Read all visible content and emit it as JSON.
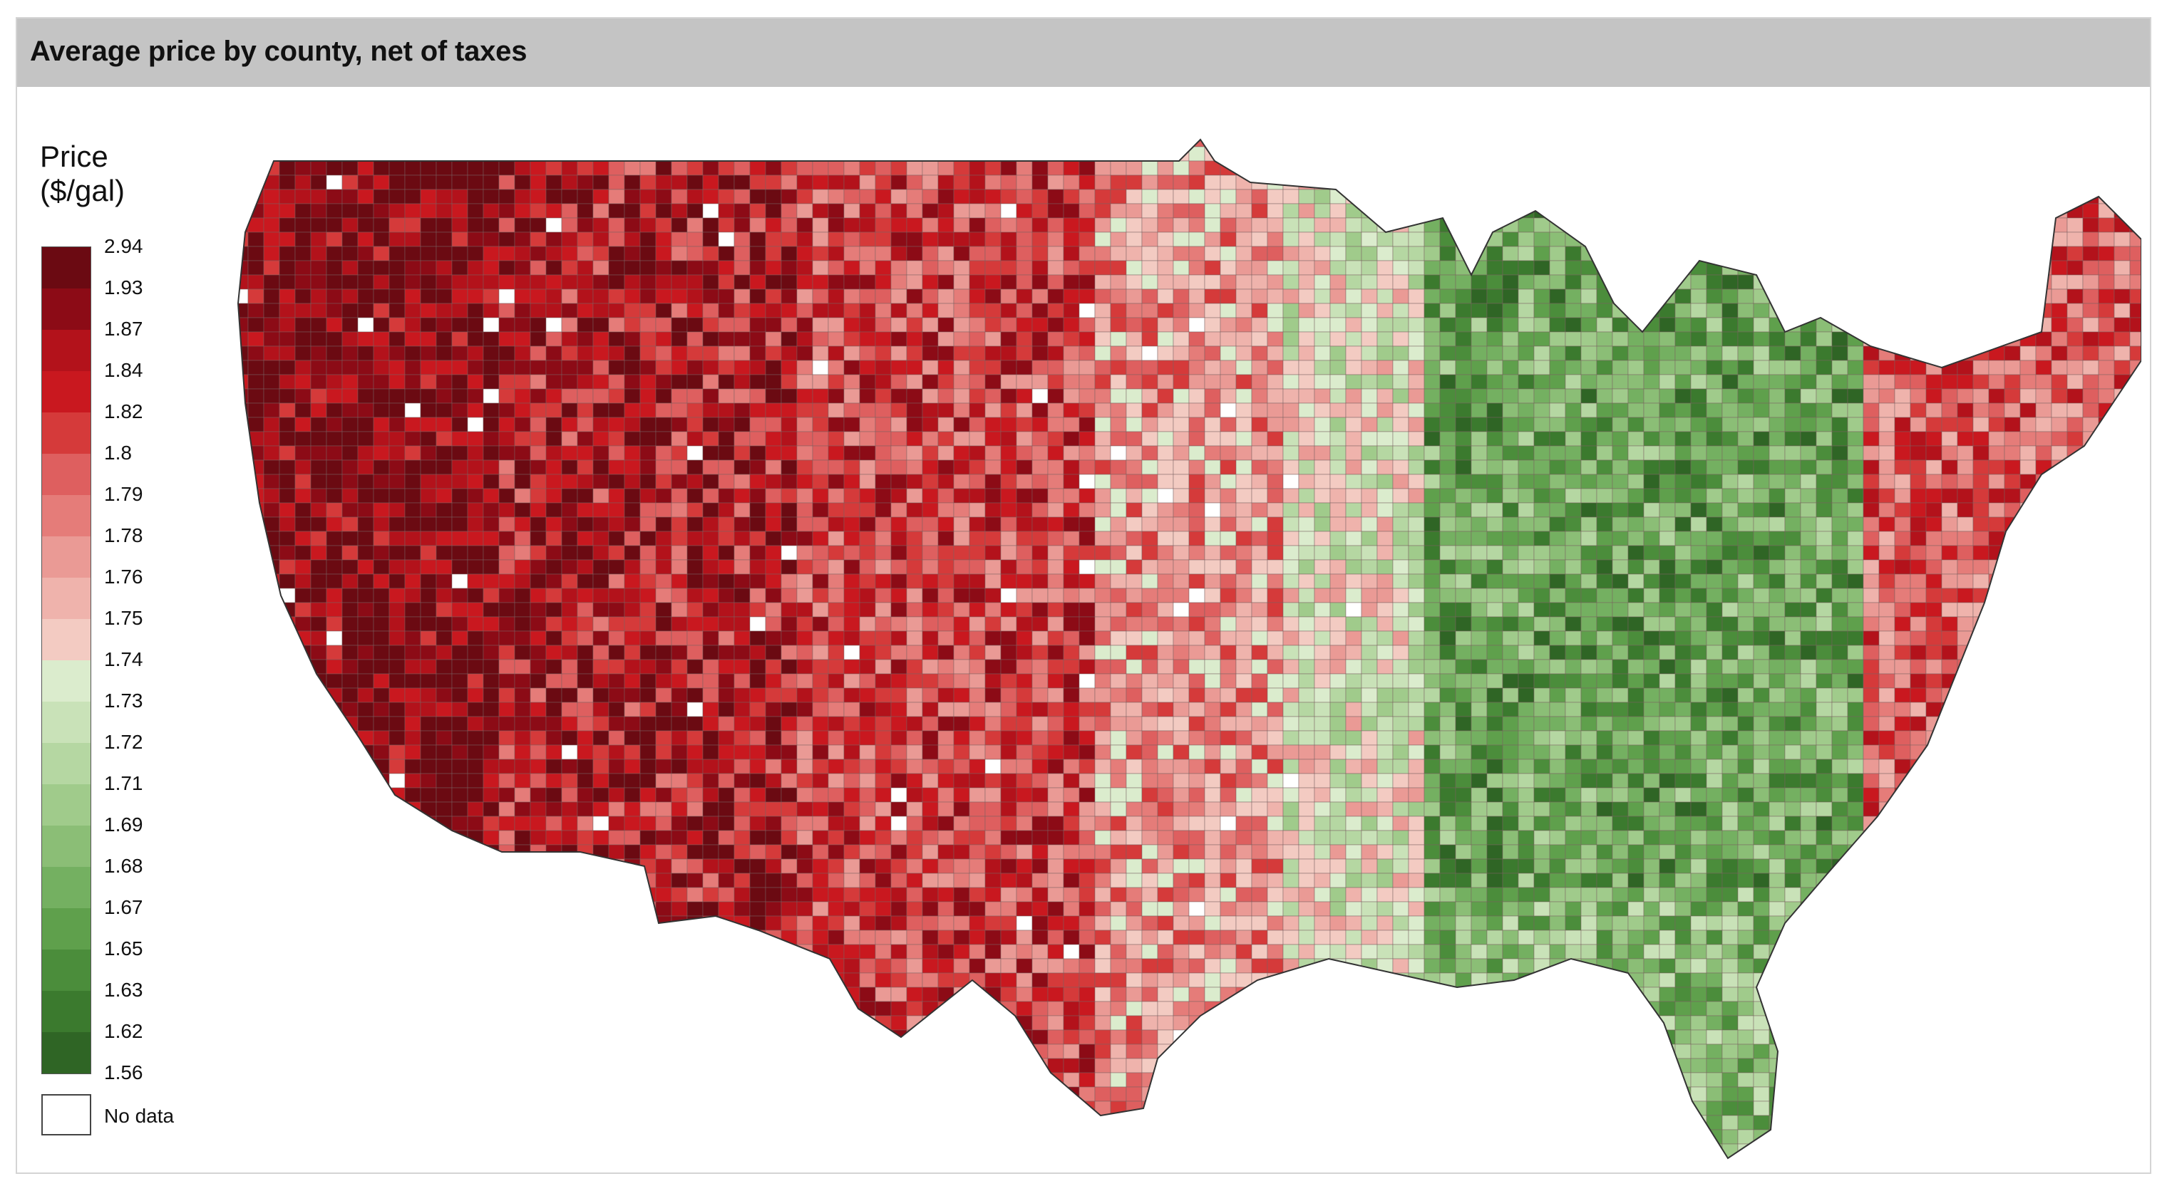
{
  "header": {
    "title": "Average price by county, net of taxes"
  },
  "legend": {
    "title": "Price\n($/gal)",
    "ticks": [
      "2.94",
      "1.93",
      "1.87",
      "1.84",
      "1.82",
      "1.8",
      "1.79",
      "1.78",
      "1.76",
      "1.75",
      "1.74",
      "1.73",
      "1.72",
      "1.71",
      "1.69",
      "1.68",
      "1.67",
      "1.65",
      "1.63",
      "1.62",
      "1.56"
    ],
    "colors": [
      "#6b0a12",
      "#8c0b16",
      "#b3121b",
      "#c9181f",
      "#d53a3a",
      "#de5f5f",
      "#e57c79",
      "#ea9a95",
      "#efb3ac",
      "#f3cbc2",
      "#dbeccd",
      "#c9e2b8",
      "#b5d7a2",
      "#a0cb8b",
      "#8bbe76",
      "#74b061",
      "#5fa04c",
      "#4b8d3b",
      "#3b7a2e",
      "#2f6525"
    ],
    "no_data_label": "No data",
    "no_data_color": "#ffffff"
  }
}
